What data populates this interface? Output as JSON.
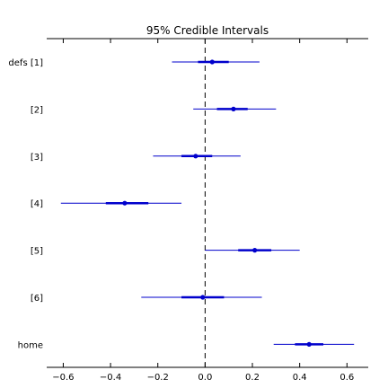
{
  "chart_data": {
    "type": "forest",
    "title": "95% Credible Intervals",
    "xlabel": "",
    "ylabel": "",
    "xlim": [
      -0.67,
      0.69
    ],
    "x_ticks": [
      -0.6,
      -0.4,
      -0.2,
      0.0,
      0.2,
      0.4,
      0.6
    ],
    "x_tick_labels": [
      "−0.6",
      "−0.4",
      "−0.2",
      "0.0",
      "0.2",
      "0.4",
      "0.6"
    ],
    "reference_line": 0.0,
    "grid": false,
    "series_color": "#0000cc",
    "rows": [
      {
        "label": "defs [1]",
        "mean": 0.03,
        "hdi95": [
          -0.14,
          0.23
        ],
        "iqr": [
          -0.03,
          0.1
        ]
      },
      {
        "label": "[2]",
        "mean": 0.12,
        "hdi95": [
          -0.05,
          0.3
        ],
        "iqr": [
          0.05,
          0.18
        ]
      },
      {
        "label": "[3]",
        "mean": -0.04,
        "hdi95": [
          -0.22,
          0.15
        ],
        "iqr": [
          -0.1,
          0.03
        ]
      },
      {
        "label": "[4]",
        "mean": -0.34,
        "hdi95": [
          -0.61,
          -0.1
        ],
        "iqr": [
          -0.42,
          -0.24
        ]
      },
      {
        "label": "[5]",
        "mean": 0.21,
        "hdi95": [
          0.0,
          0.4
        ],
        "iqr": [
          0.14,
          0.28
        ]
      },
      {
        "label": "[6]",
        "mean": -0.01,
        "hdi95": [
          -0.27,
          0.24
        ],
        "iqr": [
          -0.1,
          0.08
        ]
      },
      {
        "label": "home",
        "mean": 0.44,
        "hdi95": [
          0.29,
          0.63
        ],
        "iqr": [
          0.38,
          0.5
        ]
      }
    ]
  }
}
